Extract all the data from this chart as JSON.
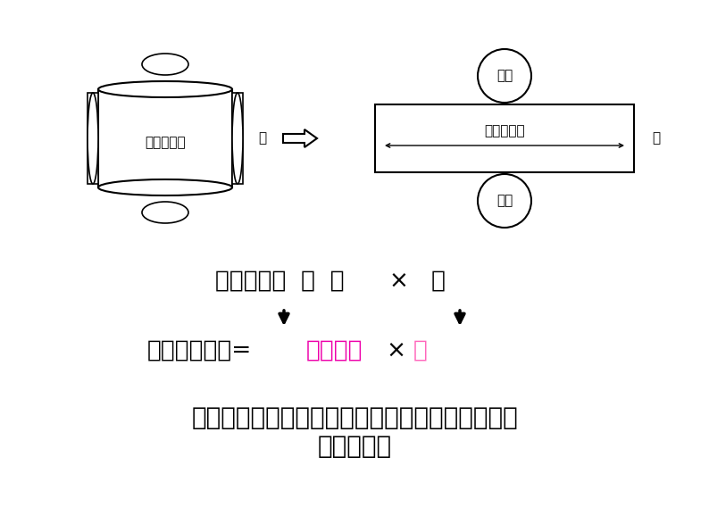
{
  "bg_color": "#ffffff",
  "magenta_color": "#ee00aa",
  "pink_color": "#ff66bb",
  "label_dimian": "底面",
  "label_zhouzhang": "底面的周长",
  "label_gao": "高",
  "formula1": "长方形面积  ＝  长      ×   宽",
  "formula2_prefix": "圆柱的侧面积=",
  "formula2_mid": "底面周长",
  "formula2_cross": "×  ",
  "formula2_suffix": "高",
  "bottom1": "长方形的长等于圆柱的底面周长，长方形的宽等于",
  "bottom2": "圆柱的高。"
}
